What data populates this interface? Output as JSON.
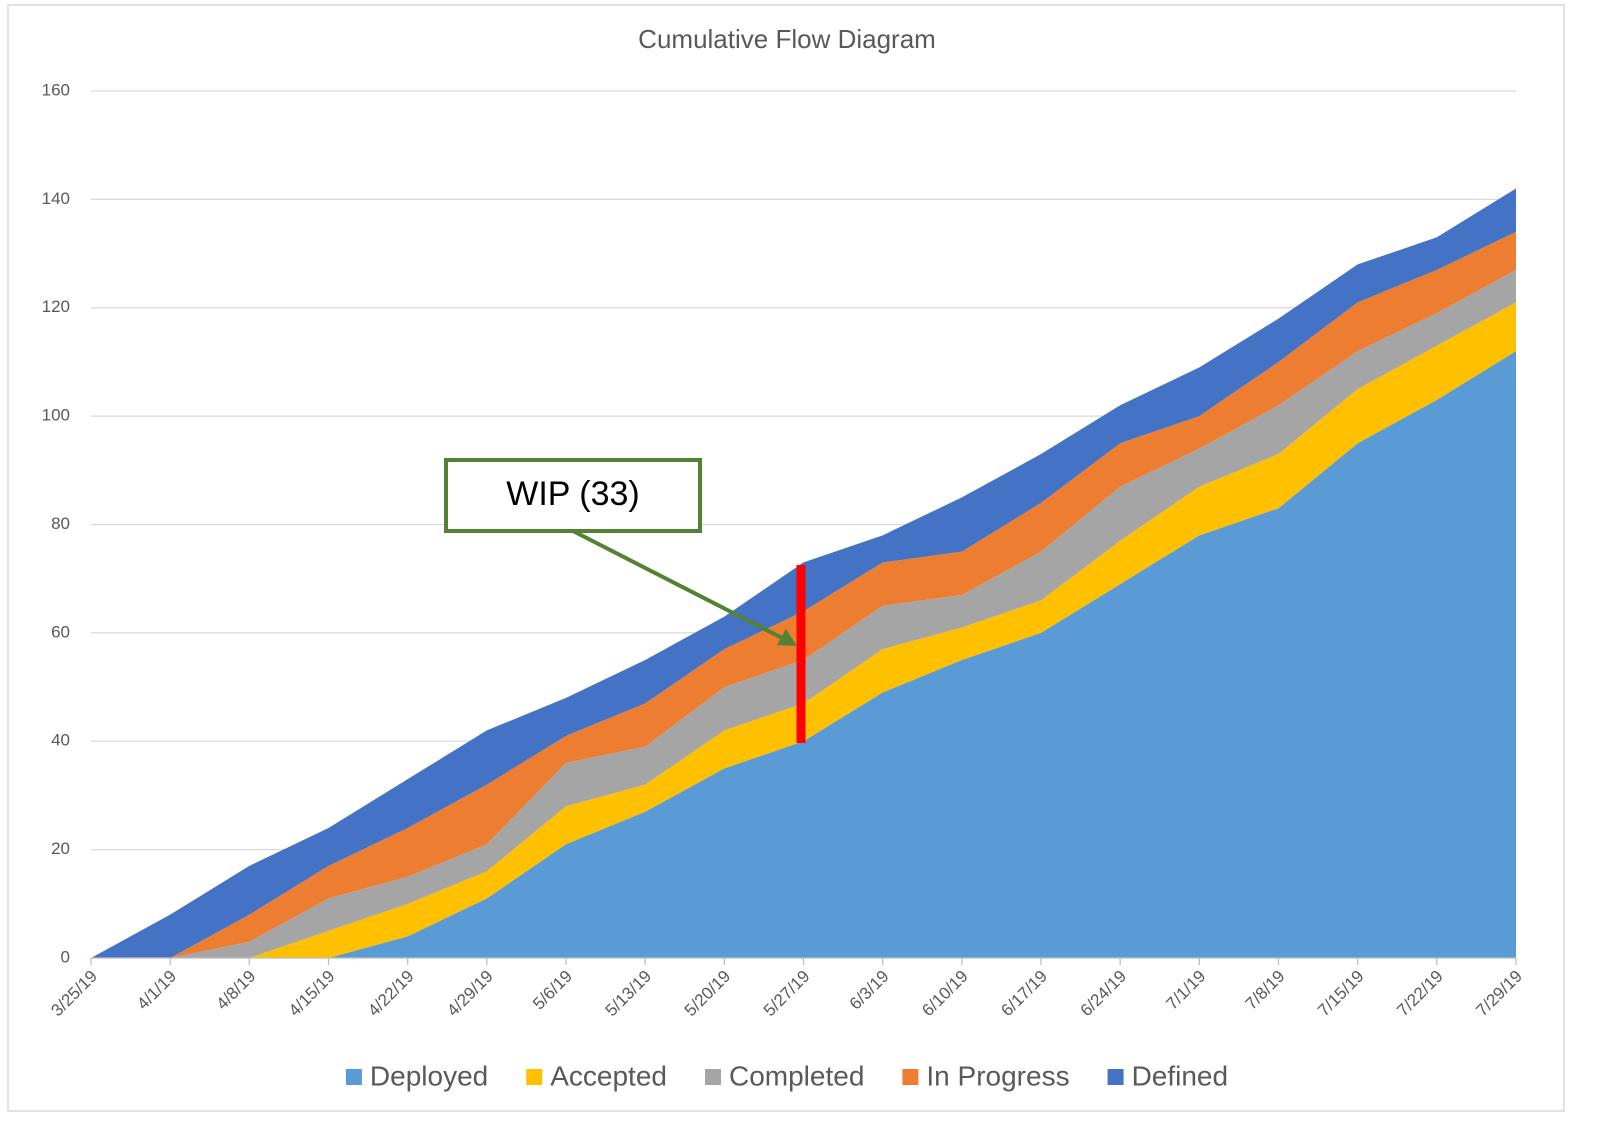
{
  "chart_data": {
    "type": "stacked-area",
    "title": "Cumulative Flow Diagram",
    "categories": [
      "3/25/19",
      "4/1/19",
      "4/8/19",
      "4/15/19",
      "4/22/19",
      "4/29/19",
      "5/6/19",
      "5/13/19",
      "5/20/19",
      "5/27/19",
      "6/3/19",
      "6/10/19",
      "6/17/19",
      "6/24/19",
      "7/1/19",
      "7/8/19",
      "7/15/19",
      "7/22/19",
      "7/29/19"
    ],
    "series": [
      {
        "name": "Deployed",
        "color": "#5b9bd5",
        "values": [
          0,
          0,
          0,
          0,
          4,
          11,
          21,
          27,
          35,
          40,
          49,
          55,
          60,
          69,
          78,
          83,
          95,
          103,
          112
        ]
      },
      {
        "name": "Accepted",
        "color": "#ffc000",
        "values": [
          0,
          0,
          0,
          5,
          6,
          5,
          7,
          5,
          7,
          7,
          8,
          6,
          6,
          8,
          9,
          10,
          10,
          10,
          9
        ]
      },
      {
        "name": "Completed",
        "color": "#a5a5a5",
        "values": [
          0,
          0,
          3,
          6,
          5,
          5,
          8,
          7,
          8,
          8,
          8,
          6,
          9,
          10,
          7,
          9,
          7,
          6,
          6
        ]
      },
      {
        "name": "In Progress",
        "color": "#ed7d31",
        "values": [
          0,
          0,
          5,
          6,
          9,
          11,
          5,
          8,
          7,
          9,
          8,
          8,
          9,
          8,
          6,
          8,
          9,
          8,
          7
        ]
      },
      {
        "name": "Defined",
        "color": "#4472c4",
        "values": [
          0,
          8,
          9,
          7,
          9,
          10,
          7,
          8,
          6,
          9,
          5,
          10,
          9,
          7,
          9,
          8,
          7,
          6,
          8
        ]
      }
    ],
    "ylim": [
      0,
      160
    ],
    "yticks": [
      0,
      20,
      40,
      60,
      80,
      100,
      120,
      140,
      160
    ],
    "grid": true,
    "legend": "bottom",
    "annotation": "WIP (33)"
  }
}
